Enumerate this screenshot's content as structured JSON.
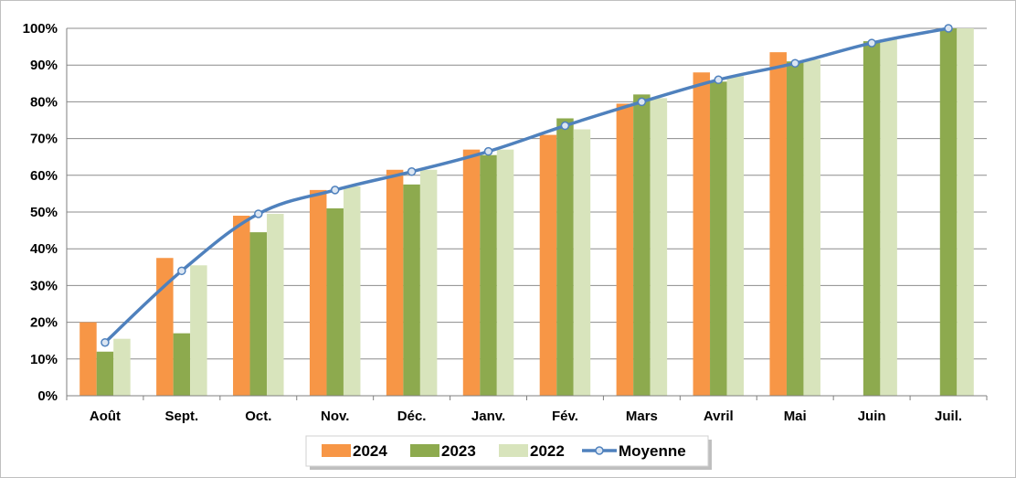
{
  "chart_data": {
    "type": "bar",
    "categories": [
      "Août",
      "Sept.",
      "Oct.",
      "Nov.",
      "Déc.",
      "Janv.",
      "Fév.",
      "Mars",
      "Avril",
      "Mai",
      "Juin",
      "Juil."
    ],
    "series": [
      {
        "name": "2024",
        "kind": "bar",
        "color": "#F79646",
        "values": [
          20,
          37.5,
          49,
          56,
          61.5,
          67,
          71,
          79.5,
          88,
          93.5,
          null,
          null
        ]
      },
      {
        "name": "2023",
        "kind": "bar",
        "color": "#8DAA4E",
        "values": [
          12,
          17,
          44.5,
          51,
          57.5,
          65.5,
          75.5,
          82,
          85.5,
          91,
          96.5,
          100
        ]
      },
      {
        "name": "2022",
        "kind": "bar",
        "color": "#D8E4BC",
        "values": [
          15.5,
          35.5,
          49.5,
          57,
          61.5,
          67,
          72.5,
          81,
          87,
          91.5,
          97,
          100
        ]
      },
      {
        "name": "Moyenne",
        "kind": "line",
        "color": "#4F81BD",
        "marker_fill": "#DCE6F2",
        "values": [
          14.5,
          34,
          49.5,
          56,
          61,
          66.5,
          73.5,
          80,
          86,
          90.5,
          96,
          100
        ]
      }
    ],
    "yticks": [
      "0%",
      "10%",
      "20%",
      "30%",
      "40%",
      "50%",
      "60%",
      "70%",
      "80%",
      "90%",
      "100%"
    ],
    "ylim": [
      0,
      100
    ],
    "grid": true,
    "legend_position": "bottom",
    "title": "",
    "xlabel": "",
    "ylabel": ""
  }
}
